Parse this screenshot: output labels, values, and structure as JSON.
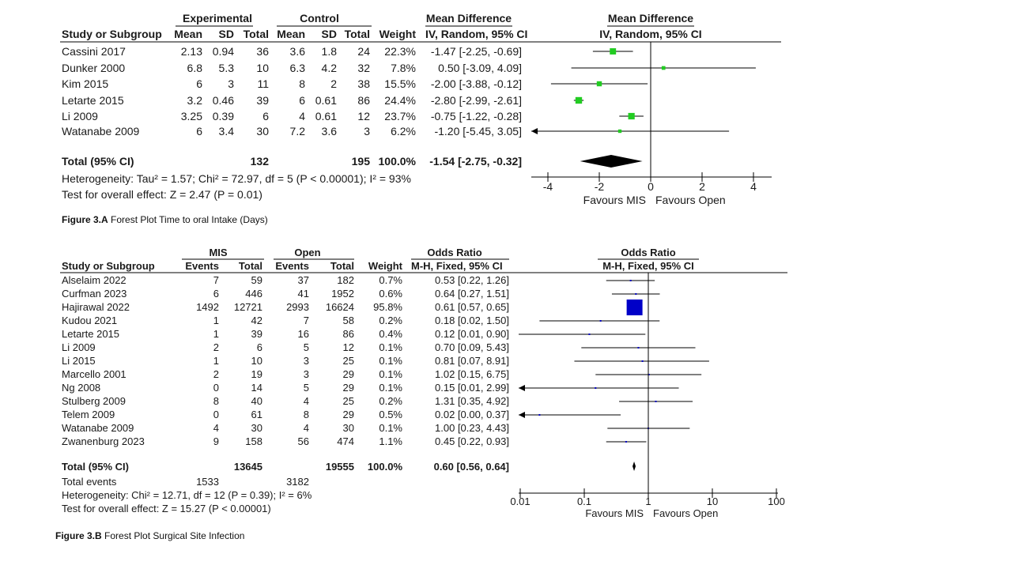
{
  "chart_data": [
    {
      "type": "forest",
      "caption": {
        "label": "Figure 3.A",
        "text": "Forest Plot Time to oral Intake (Days)"
      },
      "group_headers": [
        "Experimental",
        "Control"
      ],
      "effect_header_top": "Mean Difference",
      "effect_header_sub": "IV, Random, 95% CI",
      "plot_header_top": "Mean Difference",
      "plot_header_sub": "IV, Random, 95% CI",
      "column_headers": [
        "Study or Subgroup",
        "Mean",
        "SD",
        "Total",
        "Mean",
        "SD",
        "Total",
        "Weight",
        "IV, Random, 95% CI"
      ],
      "studies": [
        {
          "name": "Cassini 2017",
          "cells": [
            "2.13",
            "0.94",
            "36",
            "3.6",
            "1.8",
            "24",
            "22.3%"
          ],
          "ci_text": "-1.47 [-2.25, -0.69]",
          "est": -1.47,
          "lo": -2.25,
          "hi": -0.69
        },
        {
          "name": "Dunker 2000",
          "cells": [
            "6.8",
            "5.3",
            "10",
            "6.3",
            "4.2",
            "32",
            "7.8%"
          ],
          "ci_text": "0.50 [-3.09, 4.09]",
          "est": 0.5,
          "lo": -3.09,
          "hi": 4.09
        },
        {
          "name": "Kim 2015",
          "cells": [
            "6",
            "3",
            "11",
            "8",
            "2",
            "38",
            "15.5%"
          ],
          "ci_text": "-2.00 [-3.88, -0.12]",
          "est": -2.0,
          "lo": -3.88,
          "hi": -0.12
        },
        {
          "name": "Letarte 2015",
          "cells": [
            "3.2",
            "0.46",
            "39",
            "6",
            "0.61",
            "86",
            "24.4%"
          ],
          "ci_text": "-2.80 [-2.99, -2.61]",
          "est": -2.8,
          "lo": -2.99,
          "hi": -2.61
        },
        {
          "name": "Li 2009",
          "cells": [
            "3.25",
            "0.39",
            "6",
            "4",
            "0.61",
            "12",
            "23.7%"
          ],
          "ci_text": "-0.75 [-1.22, -0.28]",
          "est": -0.75,
          "lo": -1.22,
          "hi": -0.28
        },
        {
          "name": "Watanabe 2009",
          "cells": [
            "6",
            "3.4",
            "30",
            "7.2",
            "3.6",
            "3",
            "6.2%"
          ],
          "ci_text": "-1.20 [-5.45, 3.05]",
          "est": -1.2,
          "lo": -5.45,
          "hi": 3.05
        }
      ],
      "total": {
        "name": "Total (95% CI)",
        "cells": [
          "",
          "",
          "132",
          "",
          "",
          "195",
          "100.0%"
        ],
        "ci_text": "-1.54 [-2.75, -0.32]",
        "est": -1.54,
        "lo": -2.75,
        "hi": -0.32
      },
      "footer_lines": [
        "Heterogeneity: Tau² = 1.57; Chi² = 72.97, df = 5 (P < 0.00001); I² = 93%",
        "Test for overall effect: Z = 2.47 (P = 0.01)"
      ],
      "scale": "linear",
      "xlim": [
        -4,
        4
      ],
      "xticks": [
        -4,
        -2,
        0,
        2,
        4
      ],
      "xtick_labels": [
        "-4",
        "-2",
        "0",
        "2",
        "4"
      ],
      "favours": [
        "Favours MIS",
        "Favours Open"
      ],
      "marker_color": "#22cc22",
      "diamond_color": "#000000"
    },
    {
      "type": "forest",
      "caption": {
        "label": "Figure 3.B",
        "text": "Forest Plot Surgical Site Infection"
      },
      "group_headers": [
        "MIS",
        "Open"
      ],
      "effect_header_top": "Odds Ratio",
      "effect_header_sub": "M-H, Fixed, 95% CI",
      "plot_header_top": "Odds Ratio",
      "plot_header_sub": "M-H, Fixed, 95% CI",
      "column_headers": [
        "Study or Subgroup",
        "Events",
        "Total",
        "Events",
        "Total",
        "Weight",
        "M-H, Fixed, 95% CI"
      ],
      "studies": [
        {
          "name": "Alselaim 2022",
          "cells": [
            "7",
            "59",
            "37",
            "182",
            "0.7%"
          ],
          "ci_text": "0.53 [0.22, 1.26]",
          "est": 0.53,
          "lo": 0.22,
          "hi": 1.26,
          "w": 0.7
        },
        {
          "name": "Curfman 2023",
          "cells": [
            "6",
            "446",
            "41",
            "1952",
            "0.6%"
          ],
          "ci_text": "0.64 [0.27, 1.51]",
          "est": 0.64,
          "lo": 0.27,
          "hi": 1.51,
          "w": 0.6
        },
        {
          "name": "Hajirawal 2022",
          "cells": [
            "1492",
            "12721",
            "2993",
            "16624",
            "95.8%"
          ],
          "ci_text": "0.61 [0.57, 0.65]",
          "est": 0.61,
          "lo": 0.57,
          "hi": 0.65,
          "w": 95.8
        },
        {
          "name": "Kudou 2021",
          "cells": [
            "1",
            "42",
            "7",
            "58",
            "0.2%"
          ],
          "ci_text": "0.18 [0.02, 1.50]",
          "est": 0.18,
          "lo": 0.02,
          "hi": 1.5,
          "w": 0.2
        },
        {
          "name": "Letarte 2015",
          "cells": [
            "1",
            "39",
            "16",
            "86",
            "0.4%"
          ],
          "ci_text": "0.12 [0.01, 0.90]",
          "est": 0.12,
          "lo": 0.01,
          "hi": 0.9,
          "w": 0.4
        },
        {
          "name": "Li 2009",
          "cells": [
            "2",
            "6",
            "5",
            "12",
            "0.1%"
          ],
          "ci_text": "0.70 [0.09, 5.43]",
          "est": 0.7,
          "lo": 0.09,
          "hi": 5.43,
          "w": 0.1
        },
        {
          "name": "Li 2015",
          "cells": [
            "1",
            "10",
            "3",
            "25",
            "0.1%"
          ],
          "ci_text": "0.81 [0.07, 8.91]",
          "est": 0.81,
          "lo": 0.07,
          "hi": 8.91,
          "w": 0.1
        },
        {
          "name": "Marcello 2001",
          "cells": [
            "2",
            "19",
            "3",
            "29",
            "0.1%"
          ],
          "ci_text": "1.02 [0.15, 6.75]",
          "est": 1.02,
          "lo": 0.15,
          "hi": 6.75,
          "w": 0.1
        },
        {
          "name": "Ng 2008",
          "cells": [
            "0",
            "14",
            "5",
            "29",
            "0.1%"
          ],
          "ci_text": "0.15 [0.01, 2.99]",
          "est": 0.15,
          "lo": 0.01,
          "hi": 2.99,
          "w": 0.1
        },
        {
          "name": "Stulberg 2009",
          "cells": [
            "8",
            "40",
            "4",
            "25",
            "0.2%"
          ],
          "ci_text": "1.31 [0.35, 4.92]",
          "est": 1.31,
          "lo": 0.35,
          "hi": 4.92,
          "w": 0.2
        },
        {
          "name": "Telem 2009",
          "cells": [
            "0",
            "61",
            "8",
            "29",
            "0.5%"
          ],
          "ci_text": "0.02 [0.00, 0.37]",
          "est": 0.02,
          "lo": 0.0,
          "hi": 0.37,
          "w": 0.5
        },
        {
          "name": "Watanabe 2009",
          "cells": [
            "4",
            "30",
            "4",
            "30",
            "0.1%"
          ],
          "ci_text": "1.00 [0.23, 4.43]",
          "est": 1.0,
          "lo": 0.23,
          "hi": 4.43,
          "w": 0.1
        },
        {
          "name": "Zwanenburg 2023",
          "cells": [
            "9",
            "158",
            "56",
            "474",
            "1.1%"
          ],
          "ci_text": "0.45 [0.22, 0.93]",
          "est": 0.45,
          "lo": 0.22,
          "hi": 0.93,
          "w": 1.1
        }
      ],
      "total": {
        "name": "Total (95% CI)",
        "cells": [
          "",
          "13645",
          "",
          "19555",
          "100.0%"
        ],
        "ci_text": "0.60 [0.56, 0.64]",
        "est": 0.6,
        "lo": 0.56,
        "hi": 0.64
      },
      "total_events": {
        "label": "Total events",
        "values": [
          "1533",
          "3182"
        ]
      },
      "footer_lines": [
        "Heterogeneity: Chi² = 12.71, df = 12 (P = 0.39); I² = 6%",
        "Test for overall effect: Z = 15.27 (P < 0.00001)"
      ],
      "scale": "log",
      "xlim": [
        0.01,
        100
      ],
      "xticks": [
        0.01,
        0.1,
        1,
        10,
        100
      ],
      "xtick_labels": [
        "0.01",
        "0.1",
        "1",
        "10",
        "100"
      ],
      "favours": [
        "Favours MIS",
        "Favours Open"
      ],
      "marker_color": "#0000c8",
      "diamond_color": "#000000"
    }
  ]
}
